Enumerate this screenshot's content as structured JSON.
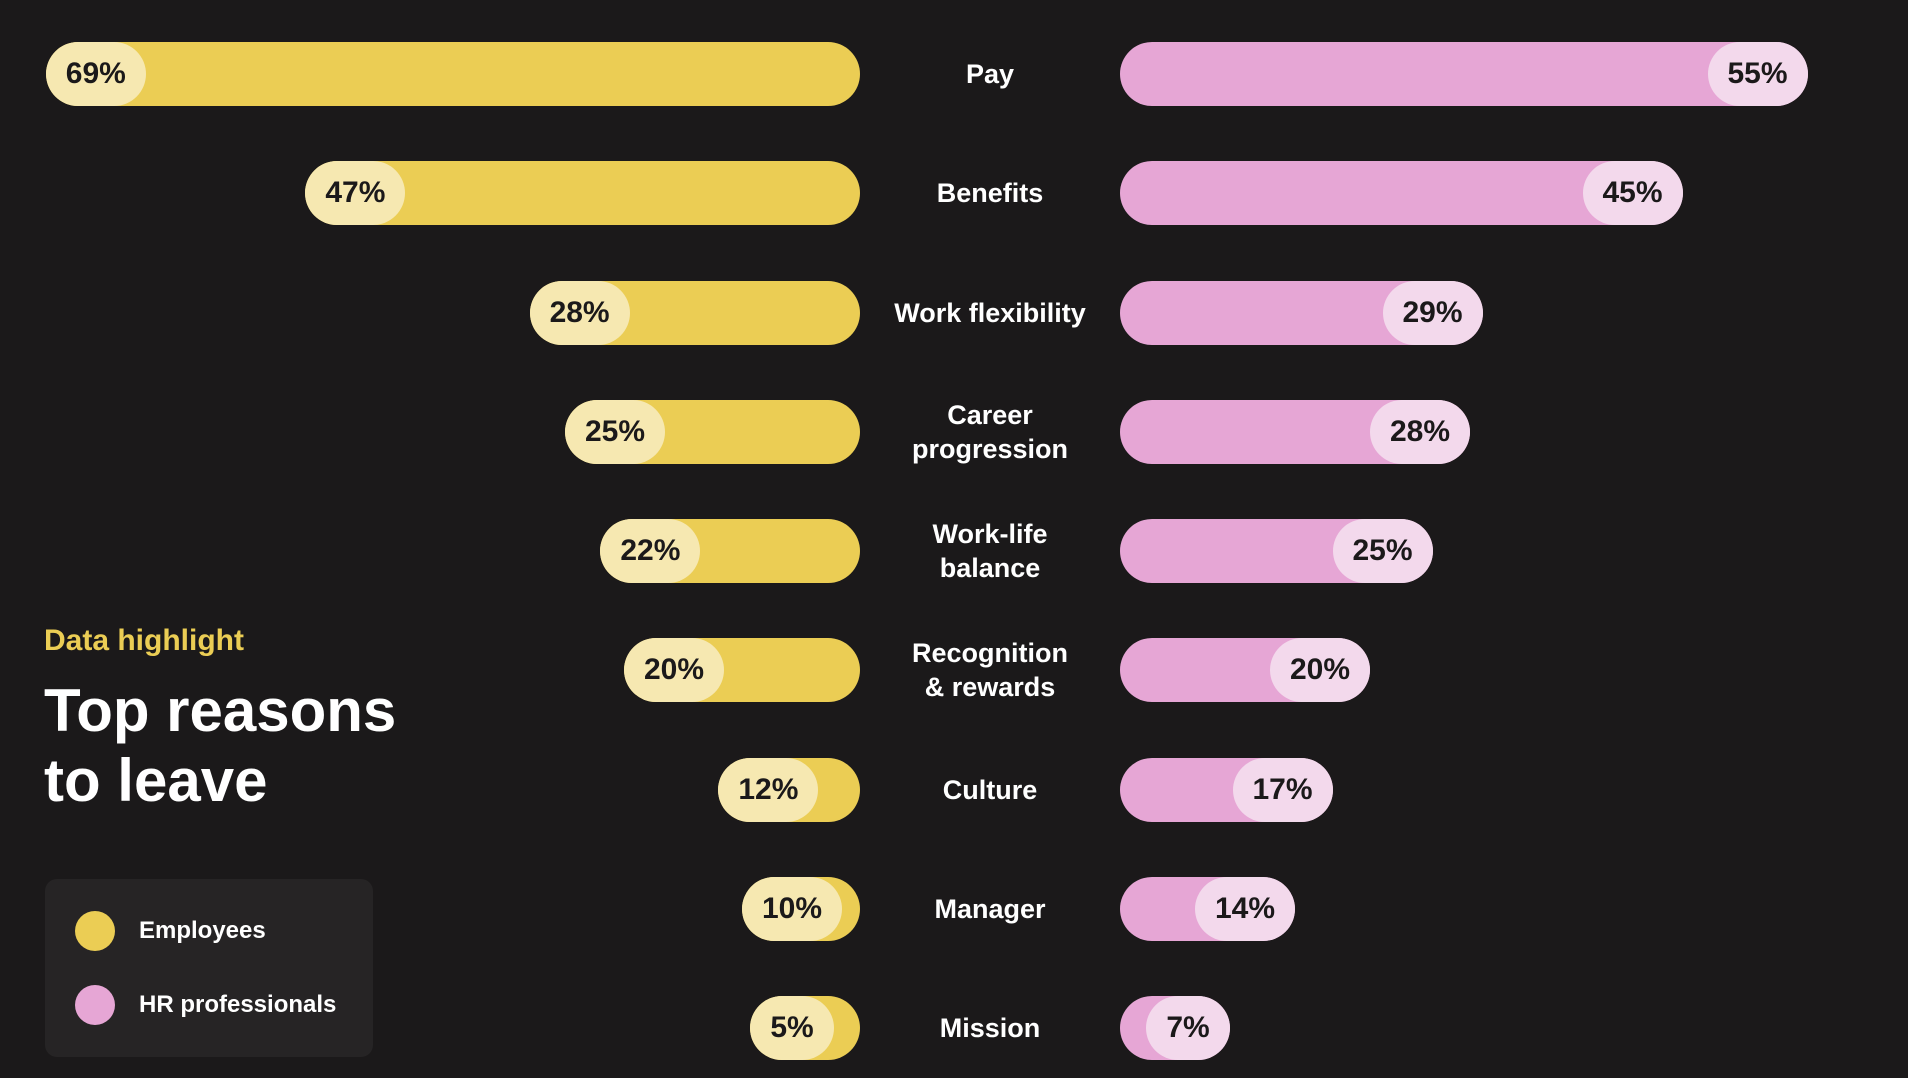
{
  "highlight_label": "Data highlight",
  "heading": "Top reasons\nto leave",
  "legend": [
    {
      "label": "Employees",
      "color": "#ebcd54"
    },
    {
      "label": "HR professionals",
      "color": "#e6a6d5"
    }
  ],
  "chart_data": {
    "type": "bar",
    "orientation": "horizontal-butterfly",
    "categories": [
      "Pay",
      "Benefits",
      "Work flexibility",
      "Career\nprogression",
      "Work-life\nbalance",
      "Recognition\n& rewards",
      "Culture",
      "Manager",
      "Mission"
    ],
    "series": [
      {
        "name": "Employees",
        "color": "#ebcd54",
        "values": [
          69,
          47,
          28,
          25,
          22,
          20,
          12,
          10,
          5
        ]
      },
      {
        "name": "HR professionals",
        "color": "#e6a6d5",
        "values": [
          55,
          45,
          29,
          28,
          25,
          20,
          17,
          14,
          7
        ]
      }
    ],
    "value_suffix": "%"
  }
}
